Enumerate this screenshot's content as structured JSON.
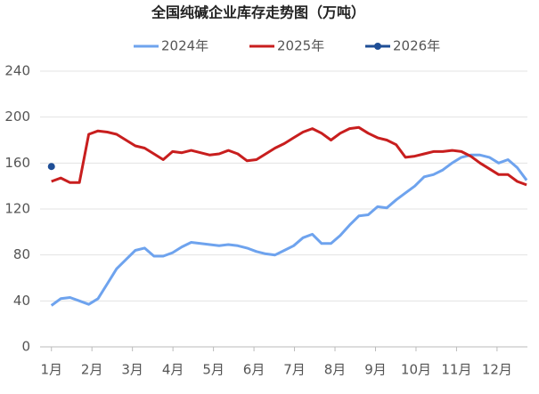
{
  "chart_data": {
    "type": "line",
    "title": "全国纯碱企业库存走势图（万吨）",
    "x": [
      1.0,
      1.23,
      1.46,
      1.69,
      1.92,
      2.15,
      2.38,
      2.61,
      2.84,
      3.07,
      3.3,
      3.53,
      3.76,
      3.99,
      4.22,
      4.45,
      4.68,
      4.91,
      5.14,
      5.37,
      5.6,
      5.83,
      6.06,
      6.29,
      6.52,
      6.75,
      6.98,
      7.21,
      7.44,
      7.67,
      7.9,
      8.13,
      8.36,
      8.59,
      8.82,
      9.05,
      9.28,
      9.51,
      9.74,
      9.97,
      10.2,
      10.43,
      10.66,
      10.89,
      11.12,
      11.35,
      11.58,
      11.81,
      12.04,
      12.27,
      12.5,
      12.73
    ],
    "xlim": [
      0.72,
      12.75
    ],
    "xticks": [
      {
        "value": 1,
        "label": "1月"
      },
      {
        "value": 2,
        "label": "2月"
      },
      {
        "value": 3,
        "label": "3月"
      },
      {
        "value": 4,
        "label": "4月"
      },
      {
        "value": 5,
        "label": "5月"
      },
      {
        "value": 6,
        "label": "6月"
      },
      {
        "value": 7,
        "label": "7月"
      },
      {
        "value": 8,
        "label": "8月"
      },
      {
        "value": 9,
        "label": "9月"
      },
      {
        "value": 10,
        "label": "10月"
      },
      {
        "value": 11,
        "label": "11月"
      },
      {
        "value": 12,
        "label": "12月"
      }
    ],
    "ylim": [
      0,
      240
    ],
    "yticks": [
      0,
      40,
      80,
      120,
      160,
      200,
      240
    ],
    "grid": true,
    "series": [
      {
        "name": "2024年",
        "color": "#6ea3ee",
        "marker": false,
        "values": [
          36,
          42,
          43,
          40,
          37,
          42,
          55,
          68,
          76,
          84,
          86,
          79,
          79,
          82,
          87,
          91,
          90,
          89,
          88,
          89,
          88,
          86,
          83,
          81,
          80,
          84,
          88,
          95,
          98,
          90,
          90,
          97,
          106,
          114,
          115,
          122,
          121,
          128,
          134,
          140,
          148,
          150,
          154,
          160,
          165,
          167,
          167,
          165,
          160,
          163,
          156,
          145
        ]
      },
      {
        "name": "2025年",
        "color": "#c81e1e",
        "marker": false,
        "values": [
          144,
          147,
          143,
          143,
          185,
          188,
          187,
          185,
          180,
          175,
          173,
          168,
          163,
          170,
          169,
          171,
          169,
          167,
          168,
          171,
          168,
          162,
          163,
          168,
          173,
          177,
          182,
          187,
          190,
          186,
          180,
          186,
          190,
          191,
          186,
          182,
          180,
          176,
          165,
          166,
          168,
          170,
          170,
          171,
          170,
          166,
          160,
          155,
          150,
          150,
          144,
          141
        ]
      },
      {
        "name": "2026年",
        "color": "#1f4e96",
        "marker": true,
        "values": [
          157,
          null,
          null,
          null,
          null,
          null,
          null,
          null,
          null,
          null,
          null,
          null,
          null,
          null,
          null,
          null,
          null,
          null,
          null,
          null,
          null,
          null,
          null,
          null,
          null,
          null,
          null,
          null,
          null,
          null,
          null,
          null,
          null,
          null,
          null,
          null,
          null,
          null,
          null,
          null,
          null,
          null,
          null,
          null,
          null,
          null,
          null,
          null,
          null,
          null,
          null,
          null
        ]
      }
    ]
  }
}
